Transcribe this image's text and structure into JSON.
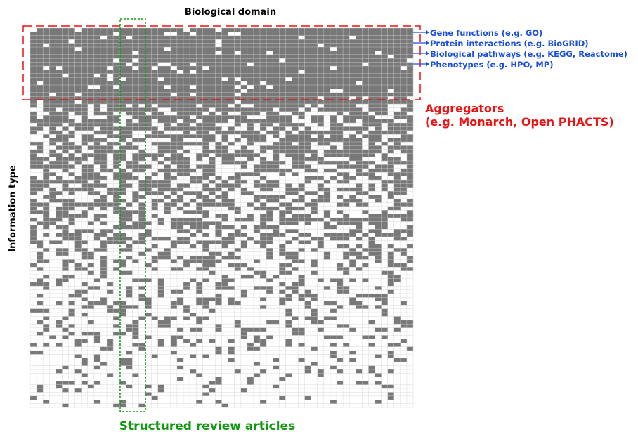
{
  "figure": {
    "title": "Biological domain",
    "y_axis_label": "Information type",
    "top_labels": [
      "Gene functions (e.g. GO)",
      "Protein interactions (e.g. BioGRID)",
      "Biological pathways (e.g. KEGG, Reactome)",
      "Phenotypes (e.g. HPO, MP)"
    ],
    "aggregators": {
      "line1": "Aggregators",
      "line2": "(e.g. Monarch, Open PHACTS)"
    },
    "structured_review": "Structured review articles"
  },
  "colors": {
    "filled_cell": "#787878",
    "empty_cell": "#ffffff",
    "grid_line": "#d2d2d2",
    "aggregator_red": "#ee1111",
    "review_green": "#119911",
    "label_blue": "#1a4fe0",
    "title_black": "#000000"
  },
  "chart_data": {
    "type": "heatmap",
    "grid": {
      "columns": 60,
      "rows": 100
    },
    "description_of_values": "binary presence/absence of coverage; density decreases from top rows to bottom rows",
    "top_rows_fill": 0.93,
    "bottom_rows_fill": 0.07
  }
}
